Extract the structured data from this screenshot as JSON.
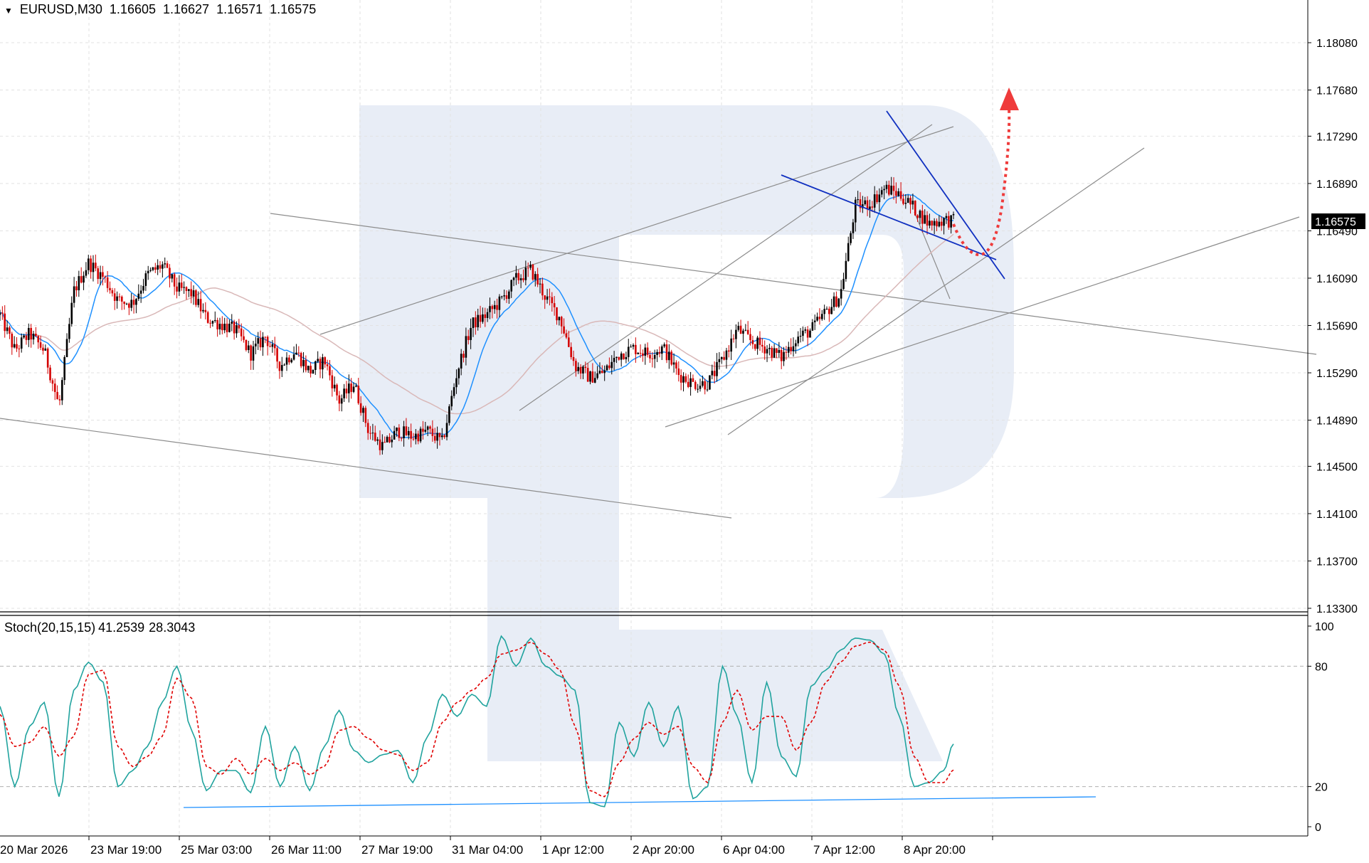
{
  "header": {
    "symbol": "EURUSD,M30",
    "open": "1.16605",
    "high": "1.16627",
    "low": "1.16571",
    "close": "1.16575"
  },
  "oscillator": {
    "label": "Stoch(20,15,15)",
    "k_value": "41.2539",
    "d_value": "28.3043"
  },
  "price_badge": "1.16575",
  "colors": {
    "up_candle": "#000000",
    "down_candle": "#d40000",
    "ma_fast": "#1e90ff",
    "ma_slow": "#d9b8b8",
    "stoch_k": "#20a39e",
    "stoch_d": "#e00000",
    "triangle_lines": "#1030c0",
    "forecast": "#ef3b3b",
    "channel_lines": "#8c8c8c",
    "watermark": "#e8edf6"
  },
  "chart_data": [
    {
      "type": "candlestick",
      "title": "EURUSD,M30",
      "price_axis_ticks": [
        "1.18080",
        "1.17680",
        "1.17290",
        "1.16890",
        "1.16490",
        "1.16090",
        "1.15690",
        "1.15290",
        "1.14890",
        "1.14500",
        "1.14100",
        "1.13700",
        "1.13300"
      ],
      "time_axis_ticks": [
        "20 Mar 2026",
        "23 Mar 19:00",
        "25 Mar 03:00",
        "26 Mar 11:00",
        "27 Mar 19:00",
        "31 Mar 04:00",
        "1 Apr 12:00",
        "2 Apr 20:00",
        "6 Apr 04:00",
        "7 Apr 12:00",
        "8 Apr 20:00"
      ],
      "ylim": [
        1.133,
        1.185
      ],
      "grid": true,
      "current_price": 1.16575,
      "price_path": [
        [
          0,
          1.1578
        ],
        [
          3,
          1.1548
        ],
        [
          6,
          1.1562
        ],
        [
          9,
          1.1548
        ],
        [
          12,
          1.15
        ],
        [
          15,
          1.1598
        ],
        [
          18,
          1.1622
        ],
        [
          21,
          1.161
        ],
        [
          24,
          1.159
        ],
        [
          27,
          1.1588
        ],
        [
          30,
          1.1612
        ],
        [
          33,
          1.162
        ],
        [
          36,
          1.16
        ],
        [
          39,
          1.1596
        ],
        [
          42,
          1.1575
        ],
        [
          45,
          1.157
        ],
        [
          48,
          1.1565
        ],
        [
          51,
          1.1545
        ],
        [
          54,
          1.156
        ],
        [
          57,
          1.1535
        ],
        [
          60,
          1.1548
        ],
        [
          63,
          1.153
        ],
        [
          66,
          1.154
        ],
        [
          69,
          1.1505
        ],
        [
          72,
          1.152
        ],
        [
          75,
          1.148
        ],
        [
          78,
          1.1466
        ],
        [
          81,
          1.148
        ],
        [
          84,
          1.1475
        ],
        [
          87,
          1.148
        ],
        [
          90,
          1.147
        ],
        [
          93,
          1.153
        ],
        [
          96,
          1.157
        ],
        [
          99,
          1.1578
        ],
        [
          102,
          1.159
        ],
        [
          105,
          1.1608
        ],
        [
          108,
          1.1616
        ],
        [
          111,
          1.1593
        ],
        [
          114,
          1.1575
        ],
        [
          117,
          1.1535
        ],
        [
          120,
          1.1525
        ],
        [
          123,
          1.153
        ],
        [
          126,
          1.1545
        ],
        [
          129,
          1.155
        ],
        [
          132,
          1.1545
        ],
        [
          135,
          1.155
        ],
        [
          138,
          1.1528
        ],
        [
          141,
          1.152
        ],
        [
          144,
          1.152
        ],
        [
          147,
          1.154
        ],
        [
          150,
          1.1566
        ],
        [
          153,
          1.1555
        ],
        [
          156,
          1.155
        ],
        [
          159,
          1.1542
        ],
        [
          162,
          1.1558
        ],
        [
          165,
          1.1565
        ],
        [
          168,
          1.158
        ],
        [
          171,
          1.1595
        ],
        [
          174,
          1.167
        ],
        [
          177,
          1.1672
        ],
        [
          180,
          1.1685
        ],
        [
          183,
          1.168
        ],
        [
          186,
          1.1668
        ],
        [
          189,
          1.1655
        ],
        [
          192,
          1.1658
        ],
        [
          194,
          1.16575
        ]
      ],
      "series": [
        {
          "name": "",
          "kind": "moving-average-fast"
        },
        {
          "name": "",
          "kind": "moving-average-slow"
        }
      ],
      "annotations": [
        "descending channel",
        "ascending channel",
        "triangle pattern",
        "forecast arrow up"
      ]
    },
    {
      "type": "line",
      "title": "Stoch(20,15,15)",
      "ylim": [
        0,
        100
      ],
      "levels": [
        20,
        80
      ],
      "tick_labels": [
        "100",
        "80",
        "20",
        "0"
      ],
      "series": [
        {
          "name": "Stoch %K",
          "value": 41.2539,
          "points": [
            [
              0,
              60
            ],
            [
              3,
              20
            ],
            [
              6,
              50
            ],
            [
              9,
              62
            ],
            [
              12,
              15
            ],
            [
              15,
              68
            ],
            [
              18,
              82
            ],
            [
              21,
              72
            ],
            [
              24,
              20
            ],
            [
              27,
              28
            ],
            [
              30,
              40
            ],
            [
              33,
              62
            ],
            [
              36,
              80
            ],
            [
              39,
              48
            ],
            [
              42,
              18
            ],
            [
              45,
              28
            ],
            [
              48,
              28
            ],
            [
              51,
              17
            ],
            [
              54,
              50
            ],
            [
              57,
              20
            ],
            [
              60,
              40
            ],
            [
              63,
              18
            ],
            [
              66,
              40
            ],
            [
              69,
              58
            ],
            [
              72,
              38
            ],
            [
              75,
              32
            ],
            [
              78,
              36
            ],
            [
              81,
              38
            ],
            [
              84,
              22
            ],
            [
              87,
              45
            ],
            [
              90,
              66
            ],
            [
              93,
              55
            ],
            [
              96,
              66
            ],
            [
              99,
              60
            ],
            [
              102,
              95
            ],
            [
              105,
              80
            ],
            [
              108,
              94
            ],
            [
              111,
              80
            ],
            [
              114,
              75
            ],
            [
              117,
              68
            ],
            [
              120,
              12
            ],
            [
              123,
              10
            ],
            [
              126,
              52
            ],
            [
              129,
              35
            ],
            [
              132,
              62
            ],
            [
              135,
              40
            ],
            [
              138,
              60
            ],
            [
              141,
              14
            ],
            [
              144,
              20
            ],
            [
              147,
              80
            ],
            [
              150,
              55
            ],
            [
              153,
              22
            ],
            [
              156,
              72
            ],
            [
              159,
              35
            ],
            [
              162,
              25
            ],
            [
              165,
              70
            ],
            [
              168,
              78
            ],
            [
              171,
              88
            ],
            [
              174,
              94
            ],
            [
              177,
              93
            ],
            [
              180,
              86
            ],
            [
              183,
              55
            ],
            [
              186,
              20
            ],
            [
              189,
              22
            ],
            [
              192,
              28
            ],
            [
              194,
              41.25
            ]
          ]
        },
        {
          "name": "Stoch %D",
          "value": 28.3043,
          "points": [
            [
              0,
              56
            ],
            [
              3,
              40
            ],
            [
              6,
              42
            ],
            [
              9,
              50
            ],
            [
              12,
              35
            ],
            [
              15,
              45
            ],
            [
              18,
              76
            ],
            [
              21,
              78
            ],
            [
              24,
              40
            ],
            [
              27,
              30
            ],
            [
              30,
              35
            ],
            [
              33,
              45
            ],
            [
              36,
              74
            ],
            [
              39,
              64
            ],
            [
              42,
              30
            ],
            [
              45,
              26
            ],
            [
              48,
              34
            ],
            [
              51,
              26
            ],
            [
              54,
              34
            ],
            [
              57,
              28
            ],
            [
              60,
              32
            ],
            [
              63,
              26
            ],
            [
              66,
              30
            ],
            [
              69,
              48
            ],
            [
              72,
              50
            ],
            [
              75,
              44
            ],
            [
              78,
              38
            ],
            [
              81,
              36
            ],
            [
              84,
              28
            ],
            [
              87,
              32
            ],
            [
              90,
              52
            ],
            [
              93,
              62
            ],
            [
              96,
              68
            ],
            [
              99,
              74
            ],
            [
              102,
              86
            ],
            [
              105,
              88
            ],
            [
              108,
              92
            ],
            [
              111,
              86
            ],
            [
              114,
              78
            ],
            [
              117,
              50
            ],
            [
              120,
              18
            ],
            [
              123,
              15
            ],
            [
              126,
              32
            ],
            [
              129,
              44
            ],
            [
              132,
              52
            ],
            [
              135,
              46
            ],
            [
              138,
              50
            ],
            [
              141,
              30
            ],
            [
              144,
              22
            ],
            [
              147,
              52
            ],
            [
              150,
              68
            ],
            [
              153,
              48
            ],
            [
              156,
              55
            ],
            [
              159,
              55
            ],
            [
              162,
              38
            ],
            [
              165,
              52
            ],
            [
              168,
              72
            ],
            [
              171,
              82
            ],
            [
              174,
              90
            ],
            [
              177,
              92
            ],
            [
              180,
              88
            ],
            [
              183,
              70
            ],
            [
              186,
              35
            ],
            [
              189,
              22
            ],
            [
              192,
              22
            ],
            [
              194,
              28.3
            ]
          ]
        }
      ]
    }
  ]
}
